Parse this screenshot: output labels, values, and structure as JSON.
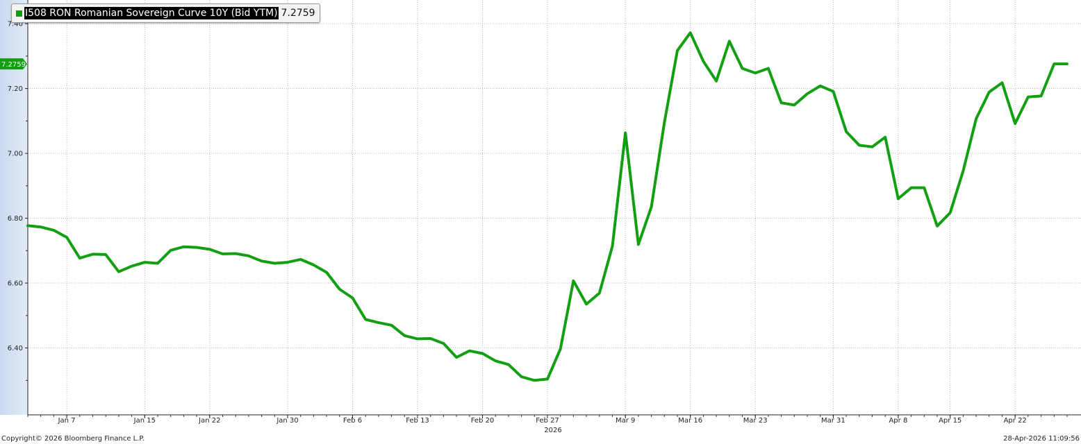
{
  "legend": {
    "series_name": "I508 RON Romanian Sovereign Curve 10Y (Bid YTM)",
    "last_value": "7.2759",
    "color": "#12a012"
  },
  "last_value_tag": "7.2759",
  "footer": {
    "copyright": "Copyright© 2026 Bloomberg Finance L.P.",
    "timestamp": "28-Apr-2026 11:09:56"
  },
  "chart_data": {
    "type": "line",
    "title": "",
    "xlabel": "",
    "ylabel": "",
    "ylim": [
      6.2,
      7.473
    ],
    "grid": true,
    "legend_position": "top-left",
    "y_ticks": [
      "6.40",
      "6.60",
      "6.80",
      "7.00",
      "7.20",
      "7.40"
    ],
    "x_ticks": [
      {
        "date": "2026-01-07",
        "label": "Jan 7"
      },
      {
        "date": "2026-01-15",
        "label": "Jan 15"
      },
      {
        "date": "2026-01-22",
        "label": "Jan 22"
      },
      {
        "date": "2026-01-30",
        "label": "Jan 30"
      },
      {
        "date": "2026-02-06",
        "label": "Feb 6"
      },
      {
        "date": "2026-02-13",
        "label": "Feb 13"
      },
      {
        "date": "2026-02-20",
        "label": "Feb 20"
      },
      {
        "date": "2026-02-27",
        "label": "Feb 27",
        "sublabel": "2026"
      },
      {
        "date": "2026-03-09",
        "label": "Mar 9"
      },
      {
        "date": "2026-03-16",
        "label": "Mar 16"
      },
      {
        "date": "2026-03-23",
        "label": "Mar 23"
      },
      {
        "date": "2026-03-31",
        "label": "Mar 31"
      },
      {
        "date": "2026-04-08",
        "label": "Apr 8"
      },
      {
        "date": "2026-04-15",
        "label": "Apr 15"
      },
      {
        "date": "2026-04-22",
        "label": "Apr 22"
      }
    ],
    "series": [
      {
        "name": "I508 RON Romanian Sovereign Curve 10Y (Bid YTM)",
        "color": "#12a012",
        "x": [
          "2026-01-02",
          "2026-01-05",
          "2026-01-06",
          "2026-01-07",
          "2026-01-08",
          "2026-01-09",
          "2026-01-12",
          "2026-01-13",
          "2026-01-14",
          "2026-01-15",
          "2026-01-16",
          "2026-01-19",
          "2026-01-20",
          "2026-01-21",
          "2026-01-22",
          "2026-01-23",
          "2026-01-26",
          "2026-01-27",
          "2026-01-28",
          "2026-01-29",
          "2026-01-30",
          "2026-02-02",
          "2026-02-03",
          "2026-02-04",
          "2026-02-05",
          "2026-02-06",
          "2026-02-09",
          "2026-02-10",
          "2026-02-11",
          "2026-02-12",
          "2026-02-13",
          "2026-02-16",
          "2026-02-17",
          "2026-02-18",
          "2026-02-19",
          "2026-02-20",
          "2026-02-23",
          "2026-02-24",
          "2026-02-25",
          "2026-02-26",
          "2026-02-27",
          "2026-03-02",
          "2026-03-03",
          "2026-03-04",
          "2026-03-05",
          "2026-03-06",
          "2026-03-09",
          "2026-03-10",
          "2026-03-11",
          "2026-03-12",
          "2026-03-13",
          "2026-03-16",
          "2026-03-17",
          "2026-03-18",
          "2026-03-19",
          "2026-03-20",
          "2026-03-23",
          "2026-03-24",
          "2026-03-25",
          "2026-03-26",
          "2026-03-27",
          "2026-03-30",
          "2026-03-31",
          "2026-04-01",
          "2026-04-02",
          "2026-04-06",
          "2026-04-07",
          "2026-04-08",
          "2026-04-09",
          "2026-04-13",
          "2026-04-14",
          "2026-04-15",
          "2026-04-16",
          "2026-04-17",
          "2026-04-20",
          "2026-04-21",
          "2026-04-22",
          "2026-04-23",
          "2026-04-24",
          "2026-04-27",
          "2026-04-28"
        ],
        "y": [
          6.777,
          6.773,
          6.763,
          6.741,
          6.677,
          6.689,
          6.688,
          6.635,
          6.652,
          6.664,
          6.661,
          6.701,
          6.712,
          6.71,
          6.704,
          6.69,
          6.691,
          6.684,
          6.668,
          6.661,
          6.664,
          6.673,
          6.656,
          6.633,
          6.581,
          6.554,
          6.488,
          6.478,
          6.47,
          6.438,
          6.428,
          6.429,
          6.414,
          6.371,
          6.391,
          6.383,
          6.36,
          6.349,
          6.311,
          6.3,
          6.304,
          6.397,
          6.607,
          6.535,
          6.569,
          6.714,
          7.063,
          6.719,
          6.835,
          7.095,
          7.317,
          7.372,
          7.284,
          7.223,
          7.346,
          7.262,
          7.248,
          7.262,
          7.156,
          7.149,
          7.184,
          7.208,
          7.191,
          7.067,
          7.025,
          7.02,
          7.05,
          6.86,
          6.894,
          6.894,
          6.776,
          6.817,
          6.946,
          7.107,
          7.189,
          7.218,
          7.092,
          7.174,
          7.177,
          7.276,
          7.2759
        ]
      }
    ]
  }
}
